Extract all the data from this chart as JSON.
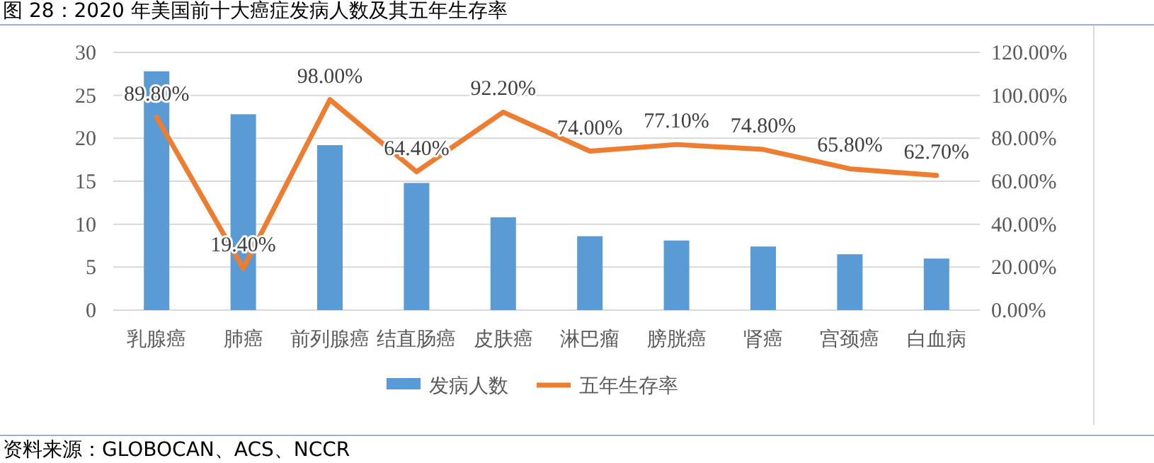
{
  "chart_data": {
    "type": "bar",
    "title": "图 28：2020 年美国前十大癌症发病人数及其五年生存率",
    "categories": [
      "乳腺癌",
      "肺癌",
      "前列腺癌",
      "结直肠癌",
      "皮肤癌",
      "淋巴瘤",
      "膀胱癌",
      "肾癌",
      "宫颈癌",
      "白血病"
    ],
    "series": [
      {
        "name": "发病人数",
        "color": "#5b9bd5",
        "values": [
          27.8,
          22.8,
          19.2,
          14.8,
          10.8,
          8.6,
          8.1,
          7.4,
          6.5,
          6.0
        ]
      },
      {
        "name": "五年生存率",
        "type": "line",
        "axis": "y2",
        "color": "#ed7d31",
        "values": [
          89.8,
          19.4,
          98.0,
          64.4,
          92.2,
          74.0,
          77.1,
          74.8,
          65.8,
          62.7
        ],
        "value_labels": [
          "89.80%",
          "19.40%",
          "98.00%",
          "64.40%",
          "92.20%",
          "74.00%",
          "77.10%",
          "74.80%",
          "65.80%",
          "62.70%"
        ]
      }
    ],
    "ylim": [
      0,
      30
    ],
    "yticks": [
      0,
      5,
      10,
      15,
      20,
      25,
      30
    ],
    "y2lim": [
      0,
      120
    ],
    "y2ticks": [
      {
        "value": 0,
        "label": "0.00%"
      },
      {
        "value": 20,
        "label": "20.00%"
      },
      {
        "value": 40,
        "label": "40.00%"
      },
      {
        "value": 60,
        "label": "60.00%"
      },
      {
        "value": 80,
        "label": "80.00%"
      },
      {
        "value": 100,
        "label": "100.00%"
      },
      {
        "value": 120,
        "label": "120.00%"
      }
    ],
    "grid": "y",
    "legend": "bottom",
    "marker": "none",
    "line_style": "solid",
    "annotations": [
      "资料来源：GLOBOCAN、ACS、NCCR"
    ]
  }
}
